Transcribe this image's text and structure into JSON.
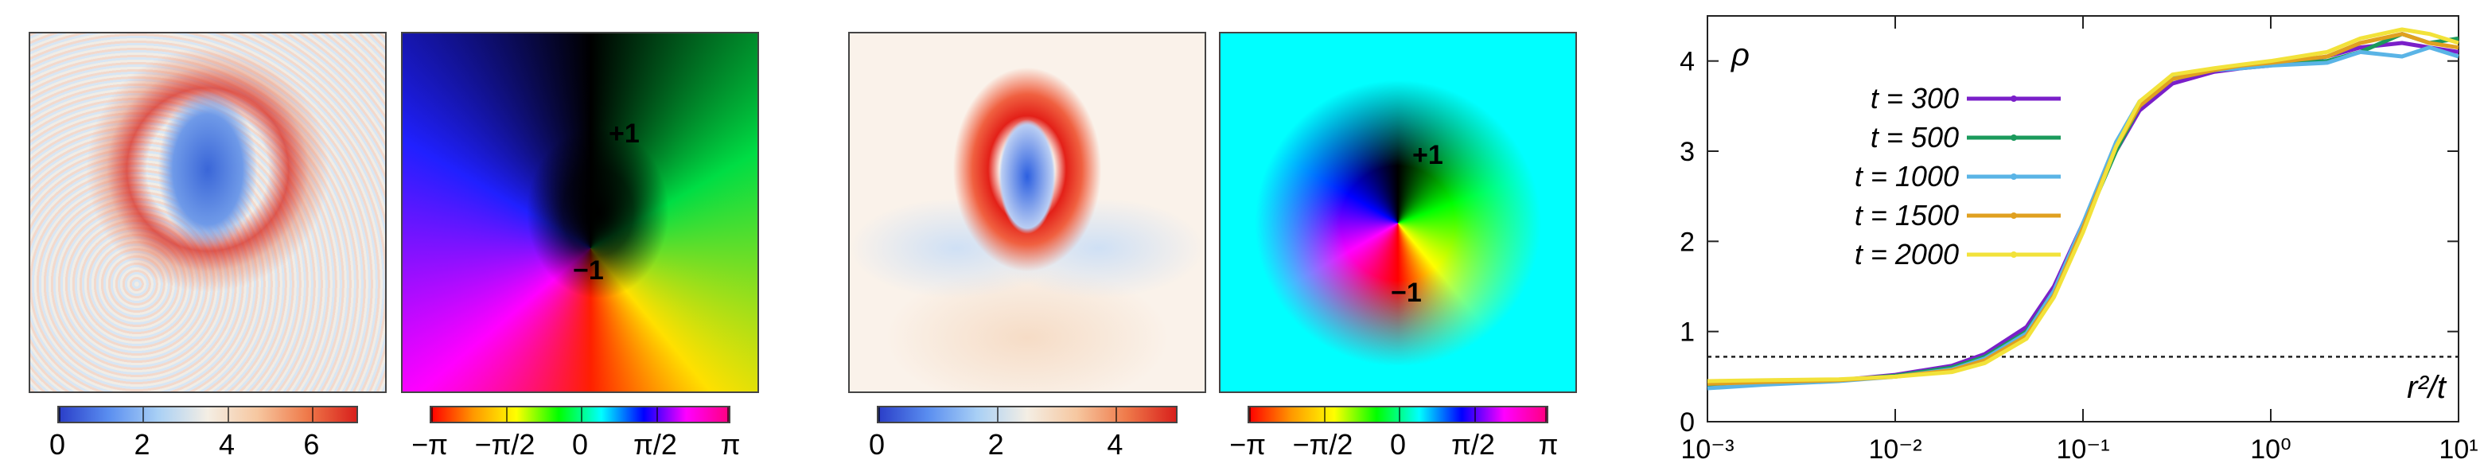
{
  "chart_data": [
    {
      "type": "heatmap",
      "colormap": "diverging",
      "colorbar": {
        "lim": [
          0,
          7.1
        ],
        "ticks": [
          0,
          2,
          4,
          6
        ]
      }
    },
    {
      "type": "heatmap",
      "colormap": "phase",
      "noise": true,
      "labels": [
        "+1",
        "−1"
      ],
      "colorbar": {
        "lim": [
          -3.1416,
          3.1416
        ],
        "ticks": [
          {
            "value": -3.1416,
            "label": "−π"
          },
          {
            "value": -1.5708,
            "label": "−π/2"
          },
          0,
          {
            "value": 1.5708,
            "label": "π/2"
          },
          {
            "value": 3.1416,
            "label": "π"
          }
        ]
      }
    },
    {
      "type": "heatmap",
      "colormap": "diverging",
      "colorbar": {
        "lim": [
          0,
          5.05
        ],
        "ticks": [
          0,
          2,
          4
        ]
      }
    },
    {
      "type": "heatmap",
      "colormap": "phase",
      "noise": false,
      "labels": [
        "+1",
        "−1"
      ],
      "colorbar": {
        "lim": [
          -3.1416,
          3.1416
        ],
        "ticks": [
          {
            "value": -3.1416,
            "label": "−π"
          },
          {
            "value": -1.5708,
            "label": "−π/2"
          },
          0,
          {
            "value": 1.5708,
            "label": "π/2"
          },
          {
            "value": 3.1416,
            "label": "π"
          }
        ]
      }
    },
    {
      "type": "line",
      "xlabel": "r²/t",
      "ylabel": "ρ",
      "log_x": true,
      "x": [
        0.001,
        0.002,
        0.005,
        0.01,
        0.02,
        0.03,
        0.05,
        0.07,
        0.1,
        0.15,
        0.2,
        0.3,
        0.5,
        0.7,
        1,
        2,
        3,
        5,
        7,
        10
      ],
      "xlim": [
        0.001,
        10
      ],
      "xticks": [
        {
          "value": 0.001,
          "label": "10⁻³"
        },
        {
          "value": 0.01,
          "label": "10⁻²"
        },
        {
          "value": 0.1,
          "label": "10⁻¹"
        },
        {
          "value": 1,
          "label": "10⁰"
        },
        {
          "value": 10,
          "label": "10¹"
        }
      ],
      "ylim": [
        0,
        4.5
      ],
      "yticks": [
        0,
        1,
        2,
        3,
        4
      ],
      "reference_line": 0.72,
      "series": [
        {
          "name": "t = 300",
          "color": "#7a1fc9",
          "values": [
            0.38,
            0.42,
            0.46,
            0.52,
            0.62,
            0.75,
            1.05,
            1.5,
            2.2,
            3.0,
            3.45,
            3.75,
            3.88,
            3.92,
            3.95,
            4.05,
            4.15,
            4.2,
            4.15,
            4.1
          ]
        },
        {
          "name": "t = 500",
          "color": "#1b9a5c",
          "values": [
            0.4,
            0.43,
            0.46,
            0.51,
            0.6,
            0.72,
            1.0,
            1.45,
            2.15,
            3.0,
            3.5,
            3.8,
            3.9,
            3.93,
            3.96,
            4.0,
            4.1,
            4.3,
            4.2,
            4.25
          ]
        },
        {
          "name": "t = 1000",
          "color": "#5ab4e6",
          "values": [
            0.37,
            0.41,
            0.45,
            0.5,
            0.58,
            0.7,
            0.98,
            1.45,
            2.2,
            3.1,
            3.55,
            3.82,
            3.9,
            3.92,
            3.95,
            3.98,
            4.1,
            4.05,
            4.15,
            4.05
          ]
        },
        {
          "name": "t = 1500",
          "color": "#e0a020",
          "values": [
            0.42,
            0.44,
            0.46,
            0.5,
            0.57,
            0.68,
            0.95,
            1.4,
            2.15,
            3.05,
            3.5,
            3.8,
            3.9,
            3.95,
            3.98,
            4.05,
            4.2,
            4.3,
            4.2,
            4.15
          ]
        },
        {
          "name": "t = 2000",
          "color": "#f2e23a",
          "values": [
            0.45,
            0.46,
            0.47,
            0.5,
            0.55,
            0.65,
            0.92,
            1.38,
            2.1,
            3.05,
            3.55,
            3.85,
            3.92,
            3.96,
            4.0,
            4.1,
            4.25,
            4.35,
            4.3,
            4.2
          ]
        }
      ]
    }
  ]
}
